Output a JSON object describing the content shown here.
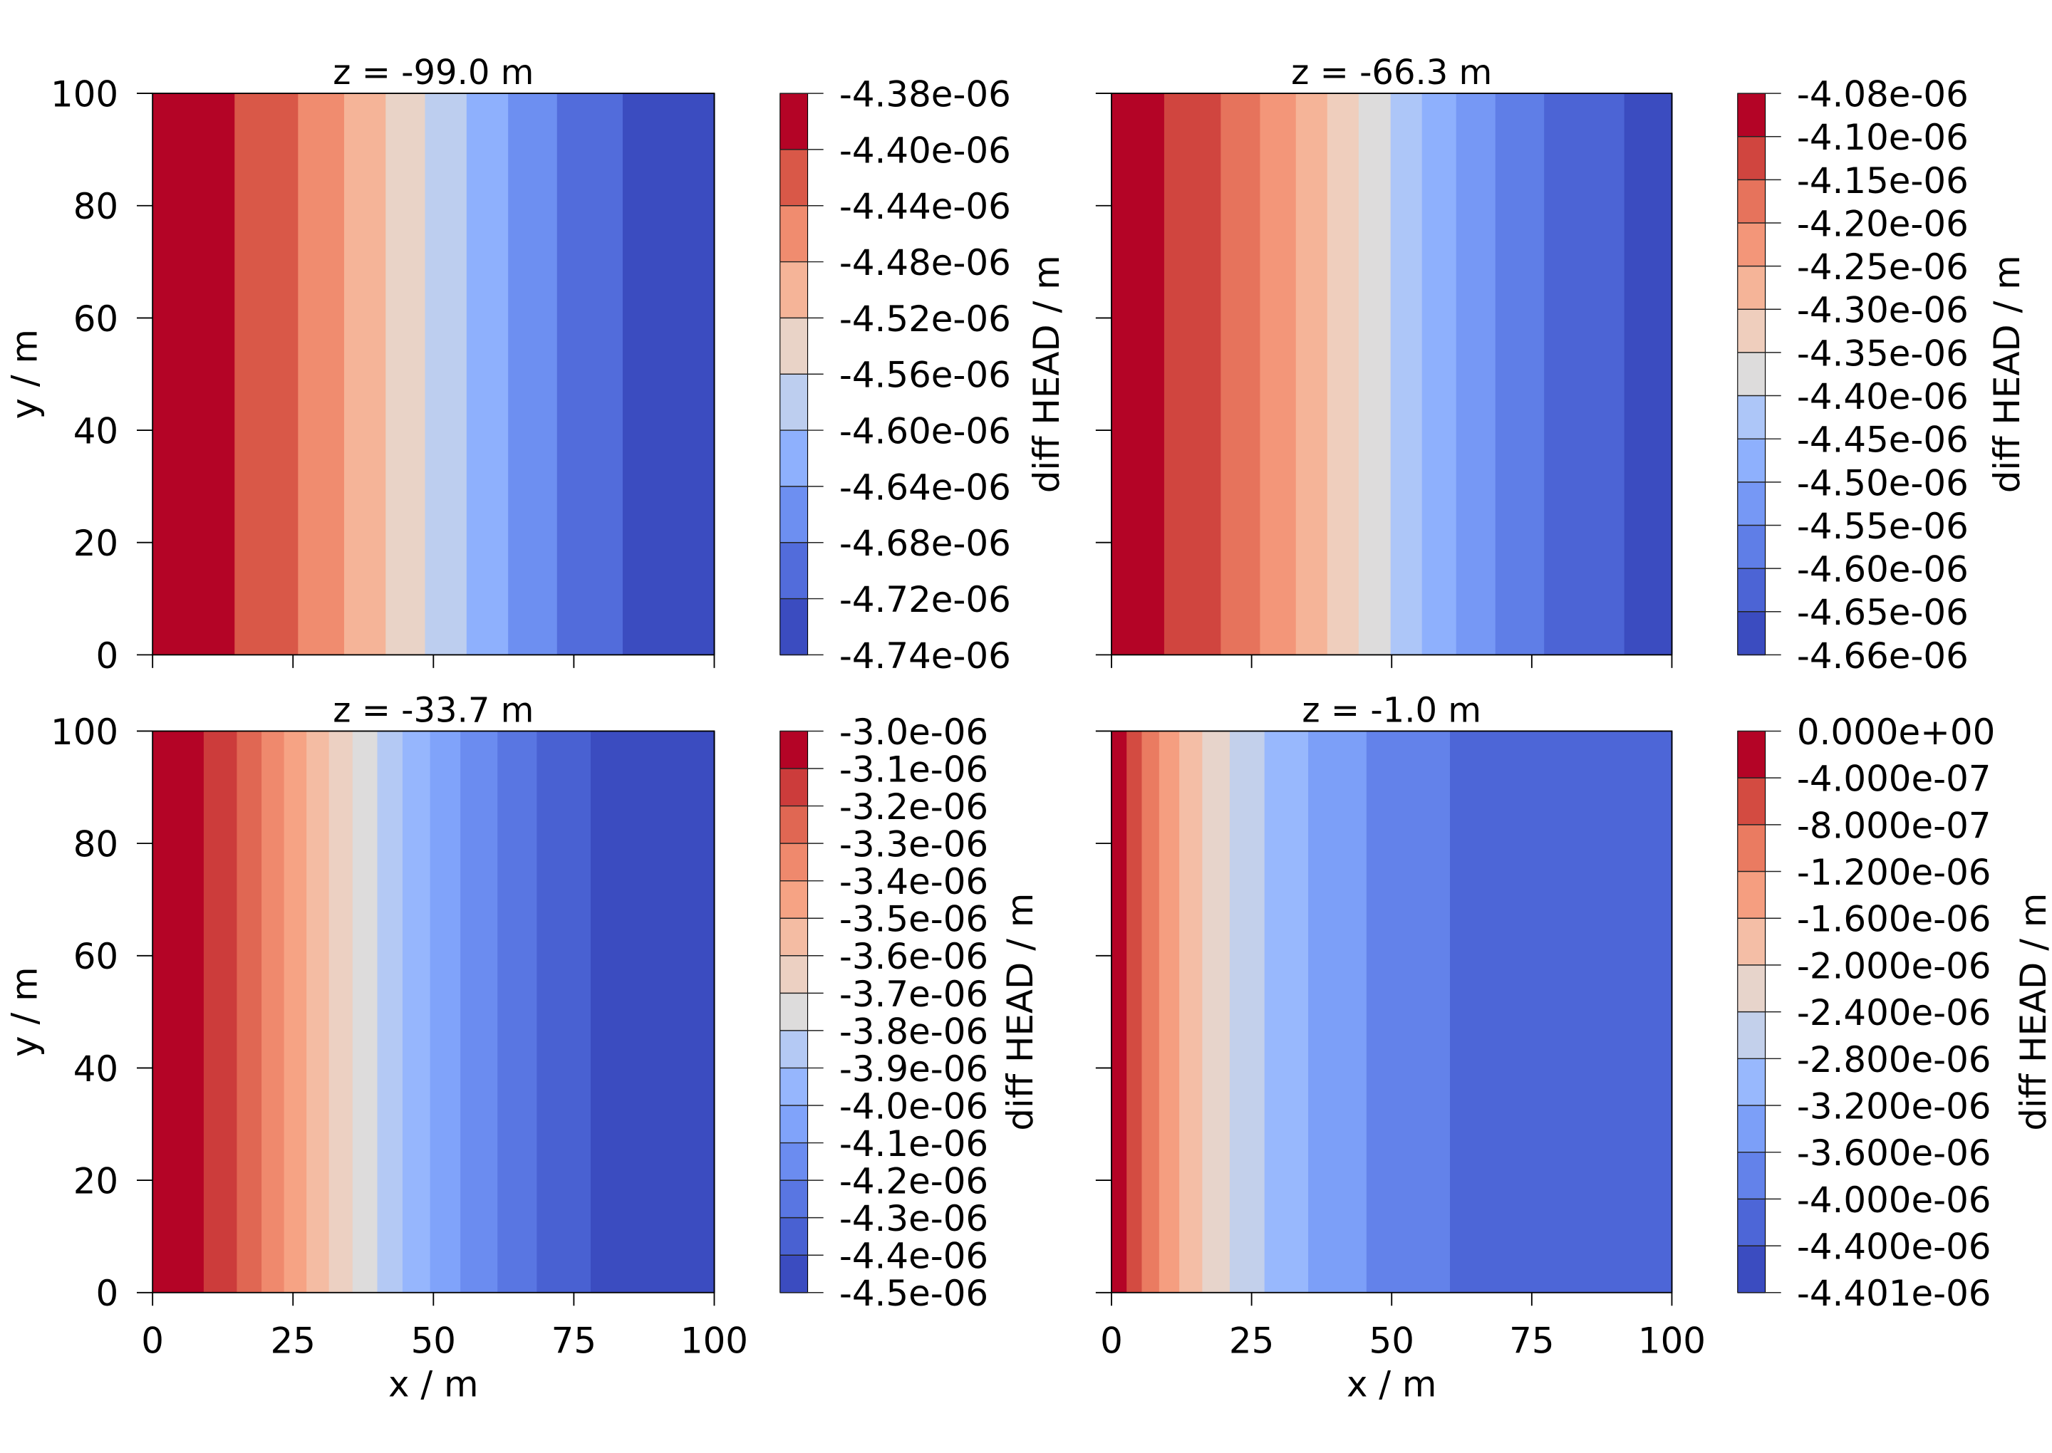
{
  "colormap": "coolwarm",
  "chart_data": [
    {
      "type": "contourf",
      "title": "z = -99.0 m",
      "xlabel": "",
      "ylabel": "y / m",
      "xlim": [
        0,
        100
      ],
      "ylim": [
        0,
        100
      ],
      "xticks": [
        0,
        25,
        50,
        75,
        100
      ],
      "xtick_labels_shown": false,
      "yticks": [
        "0",
        "20",
        "40",
        "60",
        "80",
        "100"
      ],
      "ytick_labels_shown": true,
      "colorbar_label": "diff HEAD / m",
      "levels": [
        "-4.38e-06",
        "-4.40e-06",
        "-4.44e-06",
        "-4.48e-06",
        "-4.52e-06",
        "-4.56e-06",
        "-4.60e-06",
        "-4.64e-06",
        "-4.68e-06",
        "-4.72e-06",
        "-4.74e-06"
      ],
      "band_boundaries_x": [
        14.6,
        25.9,
        34.1,
        41.5,
        48.5,
        55.9,
        63.3,
        72.0,
        83.7
      ]
    },
    {
      "type": "contourf",
      "title": "z = -66.3 m",
      "xlabel": "",
      "ylabel": "",
      "xlim": [
        0,
        100
      ],
      "ylim": [
        0,
        100
      ],
      "xticks": [
        0,
        25,
        50,
        75,
        100
      ],
      "xtick_labels_shown": false,
      "yticks": [
        "0",
        "20",
        "40",
        "60",
        "80",
        "100"
      ],
      "ytick_labels_shown": false,
      "colorbar_label": "diff HEAD / m",
      "levels": [
        "-4.08e-06",
        "-4.10e-06",
        "-4.15e-06",
        "-4.20e-06",
        "-4.25e-06",
        "-4.30e-06",
        "-4.35e-06",
        "-4.40e-06",
        "-4.45e-06",
        "-4.50e-06",
        "-4.55e-06",
        "-4.60e-06",
        "-4.65e-06",
        "-4.66e-06"
      ],
      "band_boundaries_x": [
        9.4,
        19.5,
        26.5,
        32.9,
        38.5,
        44.1,
        49.8,
        55.4,
        61.5,
        68.5,
        77.2,
        91.5
      ]
    },
    {
      "type": "contourf",
      "title": "z = -33.7 m",
      "xlabel": "x / m",
      "ylabel": "y / m",
      "xlim": [
        0,
        100
      ],
      "ylim": [
        0,
        100
      ],
      "xticks": [
        "0",
        "25",
        "50",
        "75",
        "100"
      ],
      "xtick_labels_shown": true,
      "yticks": [
        "0",
        "20",
        "40",
        "60",
        "80",
        "100"
      ],
      "ytick_labels_shown": true,
      "colorbar_label": "diff HEAD / m",
      "levels": [
        "-3.0e-06",
        "-3.1e-06",
        "-3.2e-06",
        "-3.3e-06",
        "-3.4e-06",
        "-3.5e-06",
        "-3.6e-06",
        "-3.7e-06",
        "-3.8e-06",
        "-3.9e-06",
        "-4.0e-06",
        "-4.1e-06",
        "-4.2e-06",
        "-4.3e-06",
        "-4.4e-06",
        "-4.5e-06"
      ],
      "band_boundaries_x": [
        9.1,
        15.0,
        19.4,
        23.4,
        27.4,
        31.4,
        35.6,
        40.0,
        44.5,
        49.4,
        54.8,
        61.4,
        68.4,
        78.0
      ]
    },
    {
      "type": "contourf",
      "title": "z = -1.0 m",
      "xlabel": "x / m",
      "ylabel": "",
      "xlim": [
        0,
        100
      ],
      "ylim": [
        0,
        100
      ],
      "xticks": [
        "0",
        "25",
        "50",
        "75",
        "100"
      ],
      "xtick_labels_shown": true,
      "yticks": [
        "0",
        "20",
        "40",
        "60",
        "80",
        "100"
      ],
      "ytick_labels_shown": false,
      "colorbar_label": "diff HEAD / m",
      "levels": [
        "0.000e+00",
        "-4.000e-07",
        "-8.000e-07",
        "-1.200e-06",
        "-1.600e-06",
        "-2.000e-06",
        "-2.400e-06",
        "-2.800e-06",
        "-3.200e-06",
        "-3.600e-06",
        "-4.000e-06",
        "-4.400e-06",
        "-4.401e-06"
      ],
      "band_boundaries_x": [
        2.7,
        5.4,
        8.5,
        12.1,
        16.2,
        21.1,
        27.3,
        35.1,
        45.5,
        60.4
      ]
    }
  ]
}
